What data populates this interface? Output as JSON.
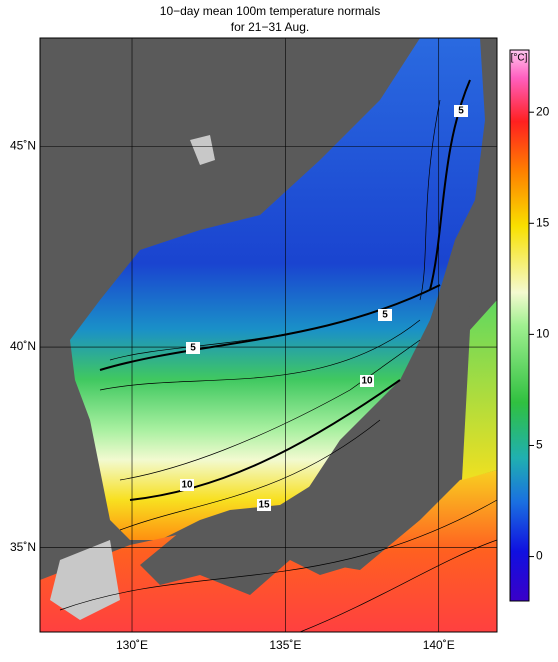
{
  "title": [
    "10−day mean 100m temperature normals",
    "for 21−31 Aug."
  ],
  "map": {
    "lon_range": [
      127,
      141.9
    ],
    "lat_range": [
      32.9,
      47.7
    ],
    "lon_ticks": [
      {
        "value": 130,
        "label": "130˚E"
      },
      {
        "value": 135,
        "label": "135˚E"
      },
      {
        "value": 140,
        "label": "140˚E"
      }
    ],
    "lat_ticks": [
      {
        "value": 45,
        "label": "45˚N"
      },
      {
        "value": 40,
        "label": "40˚N"
      },
      {
        "value": 35,
        "label": "35˚N"
      }
    ],
    "contour_labels": [
      "5",
      "5",
      "5",
      "10",
      "10",
      "15"
    ]
  },
  "colorbar": {
    "unit": "[°C]",
    "range": [
      -2,
      22.8
    ],
    "ticks": [
      0,
      5,
      10,
      15,
      20
    ]
  }
}
